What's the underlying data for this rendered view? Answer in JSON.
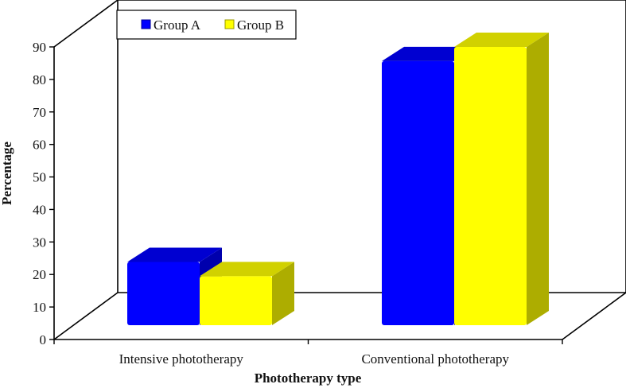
{
  "chart_data": {
    "type": "bar",
    "categories": [
      "Intensive phototherapy",
      "Conventional phototherapy"
    ],
    "series": [
      {
        "name": "Group A",
        "values": [
          20,
          83.5
        ],
        "color": "#0000ff"
      },
      {
        "name": "Group B",
        "values": [
          15.5,
          88
        ],
        "color": "#ffff00"
      }
    ],
    "xlabel": "Phototherapy type",
    "ylabel": "Percentage",
    "ylim": [
      0,
      90
    ],
    "yticks": [
      "0",
      "10",
      "20",
      "30",
      "40",
      "50",
      "60",
      "70",
      "80",
      "90"
    ],
    "grid": false,
    "legend_position": "top-left",
    "style": "3d-bar"
  }
}
